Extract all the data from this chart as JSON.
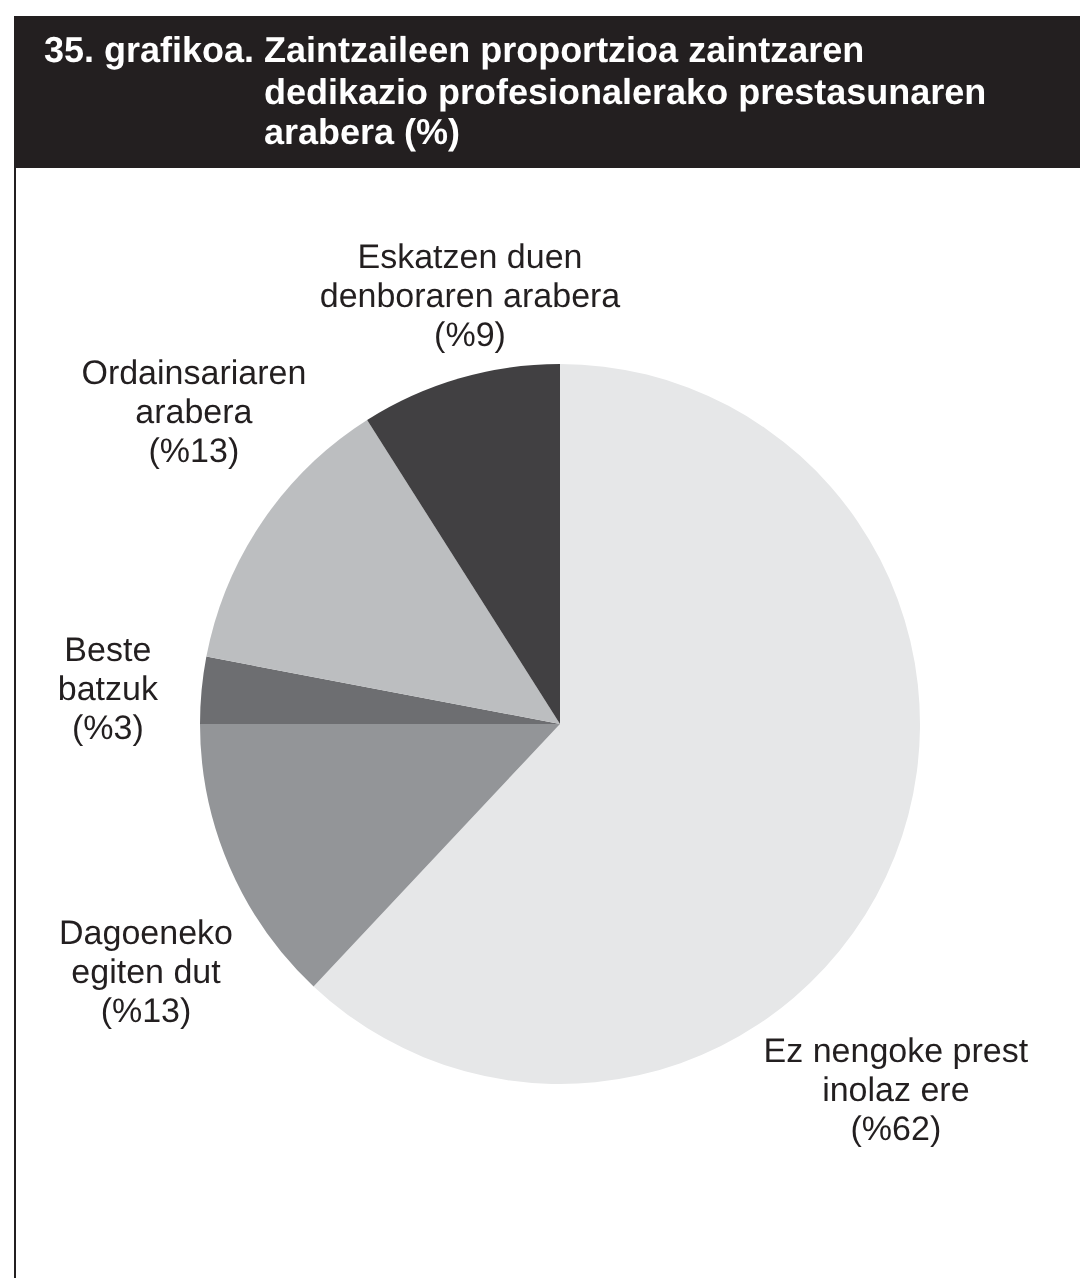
{
  "chart_data": {
    "type": "pie",
    "title": "35. grafikoa. Zaintzaileen proportzioa zaintzaren dedikazio profesionalerako prestasunaren arabera (%)",
    "categories": [
      "Ez nengoke prest inolaz ere",
      "Dagoeneko egiten dut",
      "Beste batzuk",
      "Ordainsariaren arabera",
      "Eskatzen duen denboraren arabera"
    ],
    "values": [
      62,
      13,
      3,
      13,
      9
    ],
    "colors": [
      "#e6e7e8",
      "#939598",
      "#6d6e71",
      "#bcbec0",
      "#414042"
    ],
    "value_labels": [
      "(%62)",
      "(%13)",
      "(%3)",
      "(%13)",
      "(%9)"
    ]
  }
}
